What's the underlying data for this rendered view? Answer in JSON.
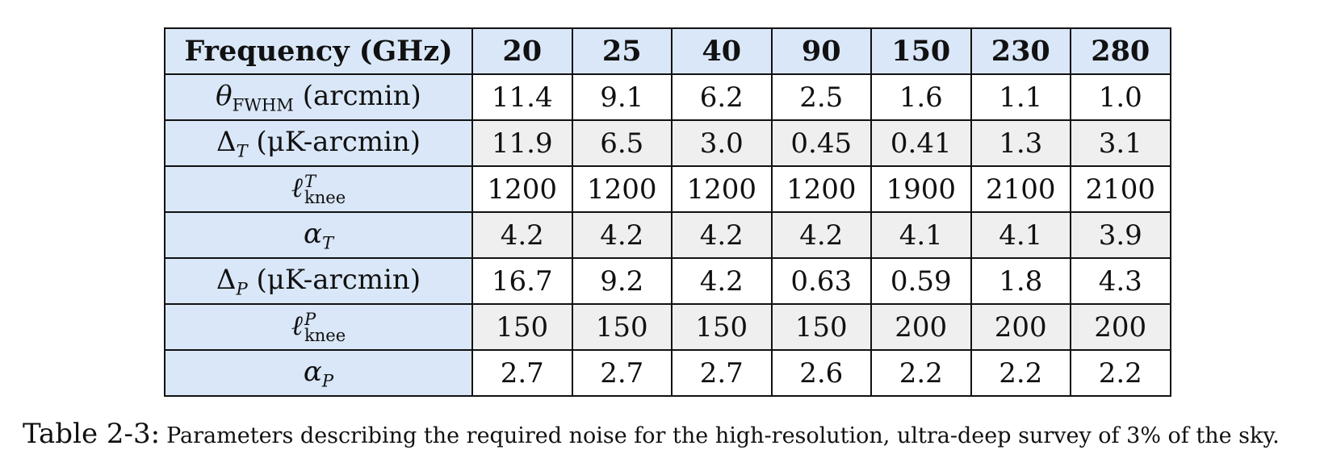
{
  "table": {
    "header": {
      "label": "Frequency (GHz)",
      "frequencies": [
        "20",
        "25",
        "40",
        "90",
        "150",
        "230",
        "280"
      ]
    },
    "rows": [
      {
        "symbol": "θ",
        "subscript": "FWHM",
        "unit": "(arcmin)",
        "values": [
          "11.4",
          "9.1",
          "6.2",
          "2.5",
          "1.6",
          "1.1",
          "1.0"
        ]
      },
      {
        "symbol": "Δ",
        "subscript": "T",
        "unit": "(μK-arcmin)",
        "values": [
          "11.9",
          "6.5",
          "3.0",
          "0.45",
          "0.41",
          "1.3",
          "3.1"
        ]
      },
      {
        "symbol": "ℓ",
        "superscript": "T",
        "subscript": "knee",
        "values": [
          "1200",
          "1200",
          "1200",
          "1200",
          "1900",
          "2100",
          "2100"
        ]
      },
      {
        "symbol": "α",
        "subscript": "T",
        "values": [
          "4.2",
          "4.2",
          "4.2",
          "4.2",
          "4.1",
          "4.1",
          "3.9"
        ]
      },
      {
        "symbol": "Δ",
        "subscript": "P",
        "unit": "(μK-arcmin)",
        "values": [
          "16.7",
          "9.2",
          "4.2",
          "0.63",
          "0.59",
          "1.8",
          "4.3"
        ]
      },
      {
        "symbol": "ℓ",
        "superscript": "P",
        "subscript": "knee",
        "values": [
          "150",
          "150",
          "150",
          "150",
          "200",
          "200",
          "200"
        ]
      },
      {
        "symbol": "α",
        "subscript": "P",
        "values": [
          "2.7",
          "2.7",
          "2.7",
          "2.6",
          "2.2",
          "2.2",
          "2.2"
        ]
      }
    ]
  },
  "caption": {
    "label": "Table 2-3:",
    "text": "Parameters describing the required noise for the high-resolution, ultra-deep survey of 3% of the sky."
  },
  "colors": {
    "header_fill": "#d9e7f8",
    "shaded_row_fill": "#efefef",
    "border": "#111111"
  }
}
